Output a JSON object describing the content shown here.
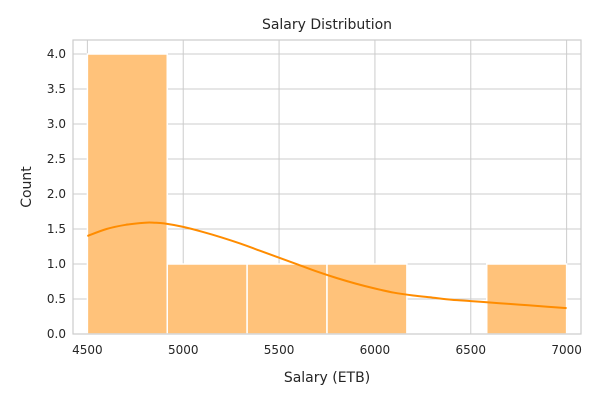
{
  "chart_data": {
    "type": "bar",
    "title": "Salary Distribution",
    "xlabel": "Salary (ETB)",
    "ylabel": "Count",
    "xlim": [
      4425,
      7075
    ],
    "ylim": [
      0,
      4.2
    ],
    "xticks": [
      4500,
      5000,
      5500,
      6000,
      6500,
      7000
    ],
    "xtick_labels": [
      "4500",
      "5000",
      "5500",
      "6000",
      "6500",
      "7000"
    ],
    "yticks": [
      0,
      0.5,
      1.0,
      1.5,
      2.0,
      2.5,
      3.0,
      3.5,
      4.0
    ],
    "ytick_labels": [
      "0.0",
      "0.5",
      "1.0",
      "1.5",
      "2.0",
      "2.5",
      "3.0",
      "3.5",
      "4.0"
    ],
    "bins": [
      {
        "x0": 4500,
        "x1": 4916.7,
        "count": 4
      },
      {
        "x0": 4916.7,
        "x1": 5333.3,
        "count": 1
      },
      {
        "x0": 5333.3,
        "x1": 5750,
        "count": 1
      },
      {
        "x0": 5750,
        "x1": 6166.7,
        "count": 1
      },
      {
        "x0": 6166.7,
        "x1": 6583.3,
        "count": 0
      },
      {
        "x0": 6583.3,
        "x1": 7000,
        "count": 1
      }
    ],
    "kde": {
      "x": [
        4500,
        4600,
        4700,
        4800,
        4850,
        4900,
        5000,
        5100,
        5200,
        5300,
        5400,
        5500,
        5600,
        5700,
        5800,
        5900,
        6000,
        6100,
        6200,
        6300,
        6400,
        6500,
        6600,
        6700,
        6800,
        6900,
        7000
      ],
      "y": [
        1.4,
        1.5,
        1.56,
        1.59,
        1.59,
        1.58,
        1.53,
        1.46,
        1.38,
        1.29,
        1.19,
        1.09,
        0.99,
        0.89,
        0.8,
        0.72,
        0.65,
        0.59,
        0.55,
        0.52,
        0.49,
        0.47,
        0.45,
        0.43,
        0.41,
        0.39,
        0.37
      ]
    },
    "grid": true,
    "legend": "none",
    "colors": {
      "bar_fill": "#ffc27a",
      "bar_edge": "#ffffff",
      "kde_line": "#ff8c00",
      "grid": "#cccccc",
      "text": "#262626"
    }
  }
}
